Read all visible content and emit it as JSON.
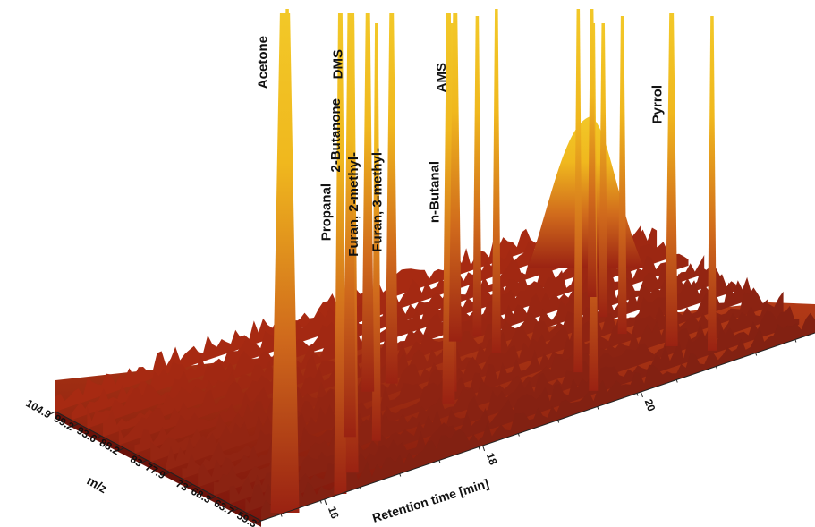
{
  "chart_data": {
    "type": "area",
    "xlabel": "Retention time [min]",
    "ylabel": "m/z",
    "x_ticks": [
      16,
      18,
      20
    ],
    "y_ticks": [
      "104.9",
      "99.2",
      "93.6",
      "88.2",
      "83",
      "77.9",
      "73",
      "68.3",
      "63.7",
      "59.3"
    ],
    "xlim": [
      15.2,
      22.2
    ],
    "colors": {
      "baseline": "#8b1a10",
      "mid": "#c8561a",
      "peak": "#f0c020"
    },
    "peaks": [
      {
        "label": "Acetone",
        "x": 15.5,
        "mz": 59.3
      },
      {
        "label": "Propanal",
        "x": 16.2,
        "mz": 59.3
      },
      {
        "label": "DMS",
        "x": 16.6,
        "mz": 63.7
      },
      {
        "label": "2-Butanone",
        "x": 17.1,
        "mz": 73
      },
      {
        "label": "Furan, 2-methyl-",
        "x": 17.9,
        "mz": 83
      },
      {
        "label": "Furan, 3-methyl-",
        "x": 18.2,
        "mz": 83
      },
      {
        "label": "n-Butanal",
        "x": 18.35,
        "mz": 73
      },
      {
        "label": "AMS",
        "x": 19.3,
        "mz": 88.2
      },
      {
        "label": "Pyrrol",
        "x": 20.9,
        "mz": 68.3
      }
    ]
  }
}
